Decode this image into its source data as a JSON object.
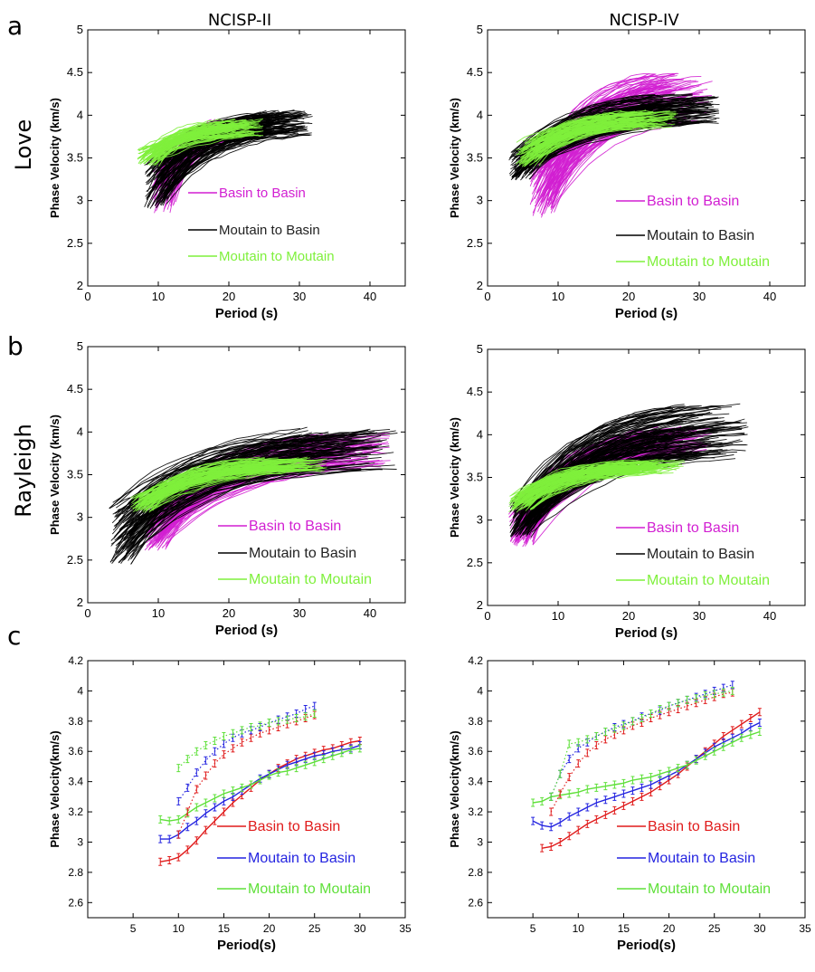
{
  "figure": {
    "panel_labels": [
      "a",
      "b",
      "c"
    ],
    "column_titles": [
      "NCISP-II",
      "NCISP-IV"
    ],
    "row_labels": [
      "Love",
      "Rayleigh"
    ]
  },
  "chart_data": [
    {
      "panel": "a-left",
      "type": "line",
      "wave": "Love",
      "profile": "NCISP-II",
      "xlabel": "Period (s)",
      "ylabel": "Phase Velocity (km/s)",
      "xlim": [
        0,
        45
      ],
      "ylim": [
        2,
        5
      ],
      "xticks": [
        0,
        10,
        20,
        30,
        40
      ],
      "yticks": [
        2,
        2.5,
        3,
        3.5,
        4,
        4.5,
        5
      ],
      "grid": false,
      "legend_position": "inside-bottom-right",
      "series": [
        {
          "name": "Basin to Basin",
          "color": "#d21fd2",
          "count": 80,
          "x_range": [
            9,
            22
          ],
          "start_y": [
            2.85,
            3.35
          ],
          "end_y": [
            3.7,
            3.95
          ]
        },
        {
          "name": "Moutain to Basin",
          "color": "#000000",
          "count": 120,
          "x_range": [
            8,
            32
          ],
          "start_y": [
            2.9,
            3.5
          ],
          "end_y": [
            3.75,
            4.05
          ]
        },
        {
          "name": "Moutain to Moutain",
          "color": "#7ff03c",
          "count": 90,
          "x_range": [
            7,
            25
          ],
          "start_y": [
            3.4,
            3.6
          ],
          "end_y": [
            3.75,
            3.95
          ]
        }
      ]
    },
    {
      "panel": "a-right",
      "type": "line",
      "wave": "Love",
      "profile": "NCISP-IV",
      "xlabel": "Period (s)",
      "ylabel": "Phase Velocity (km/s)",
      "xlim": [
        0,
        45
      ],
      "ylim": [
        2,
        5
      ],
      "xticks": [
        0,
        10,
        20,
        30,
        40
      ],
      "yticks": [
        2,
        2.5,
        3,
        3.5,
        4,
        4.5,
        5
      ],
      "grid": false,
      "legend_position": "inside-bottom-right",
      "series": [
        {
          "name": "Basin to Basin",
          "color": "#d21fd2",
          "count": 120,
          "x_range": [
            6,
            32
          ],
          "start_y": [
            2.8,
            3.5
          ],
          "end_y": [
            3.9,
            4.5
          ]
        },
        {
          "name": "Moutain to Basin",
          "color": "#000000",
          "count": 140,
          "x_range": [
            3,
            33
          ],
          "start_y": [
            3.25,
            3.6
          ],
          "end_y": [
            3.9,
            4.25
          ]
        },
        {
          "name": "Moutain to Moutain",
          "color": "#7ff03c",
          "count": 90,
          "x_range": [
            4,
            27
          ],
          "start_y": [
            3.4,
            3.7
          ],
          "end_y": [
            3.85,
            4.05
          ]
        }
      ]
    },
    {
      "panel": "b-left",
      "type": "line",
      "wave": "Rayleigh",
      "profile": "NCISP-II",
      "xlabel": "Period (s)",
      "ylabel": "Phase Velocity (km/s)",
      "xlim": [
        0,
        45
      ],
      "ylim": [
        2,
        5
      ],
      "xticks": [
        0,
        10,
        20,
        30,
        40
      ],
      "yticks": [
        2,
        2.5,
        3,
        3.5,
        4,
        4.5,
        5
      ],
      "grid": false,
      "legend_position": "inside-bottom-right",
      "series": [
        {
          "name": "Basin to Basin",
          "color": "#d21fd2",
          "count": 110,
          "x_range": [
            8,
            43
          ],
          "start_y": [
            2.6,
            3.1
          ],
          "end_y": [
            3.6,
            4.0
          ]
        },
        {
          "name": "Moutain to Basin",
          "color": "#000000",
          "count": 110,
          "x_range": [
            3,
            44
          ],
          "start_y": [
            2.45,
            3.2
          ],
          "end_y": [
            3.55,
            4.05
          ]
        },
        {
          "name": "Moutain to Moutain",
          "color": "#7ff03c",
          "count": 90,
          "x_range": [
            6,
            34
          ],
          "start_y": [
            3.05,
            3.25
          ],
          "end_y": [
            3.55,
            3.7
          ]
        }
      ]
    },
    {
      "panel": "b-right",
      "type": "line",
      "wave": "Rayleigh",
      "profile": "NCISP-IV",
      "xlabel": "Period (s)",
      "ylabel": "Phase Velocity (km/s)",
      "xlim": [
        0,
        45
      ],
      "ylim": [
        2,
        5
      ],
      "xticks": [
        0,
        10,
        20,
        30,
        40
      ],
      "yticks": [
        2,
        2.5,
        3,
        3.5,
        4,
        4.5,
        5
      ],
      "grid": false,
      "legend_position": "inside-bottom-right",
      "series": [
        {
          "name": "Basin to Basin",
          "color": "#d21fd2",
          "count": 130,
          "x_range": [
            3,
            32
          ],
          "start_y": [
            2.7,
            3.1
          ],
          "end_y": [
            3.8,
            4.1
          ]
        },
        {
          "name": "Moutain to Basin",
          "color": "#000000",
          "count": 140,
          "x_range": [
            3,
            37
          ],
          "start_y": [
            2.8,
            3.2
          ],
          "end_y": [
            3.7,
            4.35
          ]
        },
        {
          "name": "Moutain to Moutain",
          "color": "#7ff03c",
          "count": 90,
          "x_range": [
            3,
            28
          ],
          "start_y": [
            3.1,
            3.3
          ],
          "end_y": [
            3.55,
            3.7
          ]
        }
      ]
    },
    {
      "panel": "c-left",
      "type": "line",
      "profile": "NCISP-II",
      "xlabel": "Period(s)",
      "ylabel": "Phase Velocity(km/s)",
      "xlim": [
        0,
        35
      ],
      "ylim": [
        2.5,
        4.2
      ],
      "xticks": [
        5,
        10,
        15,
        20,
        25,
        30,
        35
      ],
      "xtick_labels": [
        "5",
        "10",
        "15",
        "20",
        "25",
        "30",
        "35"
      ],
      "yticks": [
        2.6,
        2.8,
        3,
        3.2,
        3.4,
        3.6,
        3.8,
        4,
        4.2
      ],
      "grid": false,
      "legend_position": "inside-bottom-right",
      "error_bars": true,
      "series": [
        {
          "name": "Basin to Basin",
          "color": "#e01b1b",
          "group": "Rayleigh",
          "x": [
            8,
            9,
            10,
            11,
            12,
            13,
            14,
            15,
            16,
            17,
            18,
            19,
            20,
            21,
            22,
            23,
            24,
            25,
            26,
            27,
            28,
            29,
            30
          ],
          "y": [
            2.87,
            2.88,
            2.9,
            2.95,
            3.01,
            3.08,
            3.14,
            3.2,
            3.26,
            3.31,
            3.36,
            3.41,
            3.45,
            3.49,
            3.52,
            3.55,
            3.57,
            3.59,
            3.61,
            3.62,
            3.64,
            3.66,
            3.67
          ]
        },
        {
          "name": "Moutain to Basin",
          "color": "#2424e0",
          "group": "Rayleigh",
          "x": [
            8,
            9,
            10,
            11,
            12,
            13,
            14,
            15,
            16,
            17,
            18,
            19,
            20,
            21,
            22,
            23,
            24,
            25,
            26,
            27,
            28,
            29,
            30
          ],
          "y": [
            3.02,
            3.02,
            3.05,
            3.1,
            3.14,
            3.19,
            3.23,
            3.27,
            3.3,
            3.34,
            3.38,
            3.42,
            3.45,
            3.48,
            3.51,
            3.53,
            3.55,
            3.57,
            3.58,
            3.6,
            3.61,
            3.62,
            3.64
          ]
        },
        {
          "name": "Moutain to Moutain",
          "color": "#5fe03a",
          "group": "Rayleigh",
          "x": [
            8,
            9,
            10,
            11,
            12,
            13,
            14,
            15,
            16,
            17,
            18,
            19,
            20,
            21,
            22,
            23,
            24,
            25,
            26,
            27,
            28,
            29,
            30
          ],
          "y": [
            3.15,
            3.14,
            3.15,
            3.19,
            3.23,
            3.26,
            3.29,
            3.32,
            3.34,
            3.36,
            3.38,
            3.41,
            3.44,
            3.46,
            3.47,
            3.49,
            3.51,
            3.53,
            3.55,
            3.57,
            3.59,
            3.61,
            3.62
          ]
        },
        {
          "name": "Basin to Basin",
          "color": "#e01b1b",
          "group": "Love",
          "dotted": true,
          "x": [
            10,
            11,
            12,
            13,
            14,
            15,
            16,
            17,
            18,
            19,
            20,
            21,
            22,
            23,
            24,
            25
          ],
          "y": [
            3.05,
            3.2,
            3.35,
            3.44,
            3.52,
            3.58,
            3.62,
            3.66,
            3.69,
            3.72,
            3.74,
            3.76,
            3.78,
            3.8,
            3.82,
            3.84
          ]
        },
        {
          "name": "Moutain to Basin",
          "color": "#2424e0",
          "group": "Love",
          "dotted": true,
          "x": [
            10,
            11,
            12,
            13,
            14,
            15,
            16,
            17,
            18,
            19,
            20,
            21,
            22,
            23,
            24,
            25
          ],
          "y": [
            3.27,
            3.36,
            3.46,
            3.54,
            3.6,
            3.65,
            3.69,
            3.72,
            3.74,
            3.76,
            3.79,
            3.81,
            3.83,
            3.85,
            3.88,
            3.9
          ]
        },
        {
          "name": "Moutain to Moutain",
          "color": "#5fe03a",
          "group": "Love",
          "dotted": true,
          "x": [
            10,
            11,
            12,
            13,
            14,
            15,
            16,
            17,
            18,
            19,
            20,
            21,
            22,
            23,
            24,
            25
          ],
          "y": [
            3.49,
            3.55,
            3.6,
            3.64,
            3.67,
            3.7,
            3.72,
            3.74,
            3.76,
            3.77,
            3.79,
            3.8,
            3.81,
            3.82,
            3.83,
            3.85
          ]
        }
      ]
    },
    {
      "panel": "c-right",
      "type": "line",
      "profile": "NCISP-IV",
      "xlabel": "Period(s)",
      "ylabel": "Phase Velocity(km/s)",
      "xlim": [
        0,
        35
      ],
      "ylim": [
        2.5,
        4.2
      ],
      "xticks": [
        5,
        10,
        15,
        20,
        25,
        30,
        35
      ],
      "xtick_labels": [
        "5",
        "10",
        "15",
        "20",
        "25",
        "30",
        "35"
      ],
      "yticks": [
        2.6,
        2.8,
        3,
        3.2,
        3.4,
        3.6,
        3.8,
        4,
        4.2
      ],
      "grid": false,
      "legend_position": "inside-bottom-right",
      "error_bars": true,
      "series": [
        {
          "name": "Basin to Basin",
          "color": "#e01b1b",
          "group": "Rayleigh",
          "x": [
            6,
            7,
            8,
            9,
            10,
            11,
            12,
            13,
            14,
            15,
            16,
            17,
            18,
            19,
            20,
            21,
            22,
            23,
            24,
            25,
            26,
            27,
            28,
            29,
            30
          ],
          "y": [
            2.96,
            2.97,
            3.0,
            3.04,
            3.08,
            3.12,
            3.15,
            3.18,
            3.21,
            3.24,
            3.27,
            3.3,
            3.33,
            3.37,
            3.41,
            3.45,
            3.5,
            3.55,
            3.6,
            3.65,
            3.7,
            3.74,
            3.78,
            3.82,
            3.86
          ]
        },
        {
          "name": "Moutain to Basin",
          "color": "#2424e0",
          "group": "Rayleigh",
          "x": [
            5,
            6,
            7,
            8,
            9,
            10,
            11,
            12,
            13,
            14,
            15,
            16,
            17,
            18,
            19,
            20,
            21,
            22,
            23,
            24,
            25,
            26,
            27,
            28,
            29,
            30
          ],
          "y": [
            3.14,
            3.11,
            3.1,
            3.13,
            3.17,
            3.2,
            3.23,
            3.26,
            3.28,
            3.3,
            3.32,
            3.34,
            3.36,
            3.38,
            3.41,
            3.44,
            3.47,
            3.51,
            3.55,
            3.59,
            3.63,
            3.66,
            3.69,
            3.72,
            3.76,
            3.79
          ]
        },
        {
          "name": "Moutain to Moutain",
          "color": "#5fe03a",
          "group": "Rayleigh",
          "x": [
            5,
            6,
            7,
            8,
            9,
            10,
            11,
            12,
            13,
            14,
            15,
            16,
            17,
            18,
            19,
            20,
            21,
            22,
            23,
            24,
            25,
            26,
            27,
            28,
            29,
            30
          ],
          "y": [
            3.26,
            3.27,
            3.3,
            3.31,
            3.32,
            3.33,
            3.35,
            3.36,
            3.37,
            3.38,
            3.39,
            3.41,
            3.42,
            3.43,
            3.45,
            3.47,
            3.49,
            3.51,
            3.54,
            3.57,
            3.6,
            3.63,
            3.66,
            3.69,
            3.71,
            3.73
          ]
        },
        {
          "name": "Basin to Basin",
          "color": "#e01b1b",
          "group": "Love",
          "dotted": true,
          "x": [
            7,
            8,
            9,
            10,
            11,
            12,
            13,
            14,
            15,
            16,
            17,
            18,
            19,
            20,
            21,
            22,
            23,
            24,
            25,
            26,
            27
          ],
          "y": [
            3.2,
            3.32,
            3.43,
            3.52,
            3.59,
            3.64,
            3.68,
            3.71,
            3.74,
            3.77,
            3.79,
            3.82,
            3.84,
            3.86,
            3.88,
            3.9,
            3.92,
            3.94,
            3.96,
            3.98,
            3.99
          ]
        },
        {
          "name": "Moutain to Basin",
          "color": "#2424e0",
          "group": "Love",
          "dotted": true,
          "x": [
            7,
            8,
            9,
            10,
            11,
            12,
            13,
            14,
            15,
            16,
            17,
            18,
            19,
            20,
            21,
            22,
            23,
            24,
            25,
            26,
            27
          ],
          "y": [
            3.3,
            3.45,
            3.55,
            3.62,
            3.66,
            3.7,
            3.73,
            3.76,
            3.78,
            3.8,
            3.83,
            3.85,
            3.87,
            3.9,
            3.92,
            3.94,
            3.96,
            3.98,
            4.0,
            4.02,
            4.04
          ]
        },
        {
          "name": "Moutain to Moutain",
          "color": "#5fe03a",
          "group": "Love",
          "dotted": true,
          "x": [
            7,
            8,
            9,
            10,
            11,
            12,
            13,
            14,
            15,
            16,
            17,
            18,
            19,
            20,
            21,
            22,
            23,
            24,
            25,
            26,
            27
          ],
          "y": [
            3.3,
            3.45,
            3.65,
            3.66,
            3.68,
            3.7,
            3.73,
            3.75,
            3.77,
            3.8,
            3.82,
            3.85,
            3.88,
            3.9,
            3.92,
            3.94,
            3.95,
            3.97,
            3.98,
            3.99,
            4.0
          ]
        }
      ]
    }
  ]
}
